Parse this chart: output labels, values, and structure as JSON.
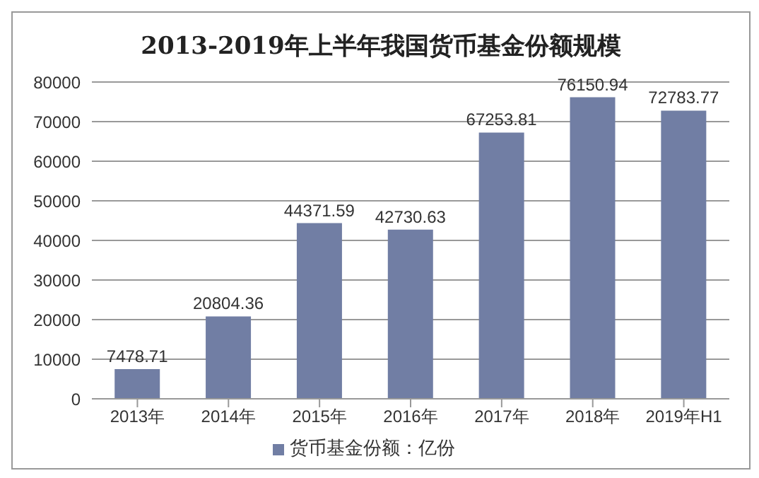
{
  "chart_data": {
    "type": "bar",
    "title": "2013-2019年上半年我国货币基金份额规模",
    "categories": [
      "2013年",
      "2014年",
      "2015年",
      "2016年",
      "2017年",
      "2018年",
      "2019年H1"
    ],
    "series": [
      {
        "name": "货币基金份额：亿份",
        "color": "#717ea4",
        "values": [
          7478.71,
          20804.36,
          44371.59,
          42730.63,
          67253.81,
          76150.94,
          72783.77
        ]
      }
    ],
    "ylim": [
      0,
      80000
    ],
    "yticks": [
      0,
      10000,
      20000,
      30000,
      40000,
      50000,
      60000,
      70000,
      80000
    ],
    "grid": "y",
    "legend": "bottom",
    "data_labels": true
  }
}
